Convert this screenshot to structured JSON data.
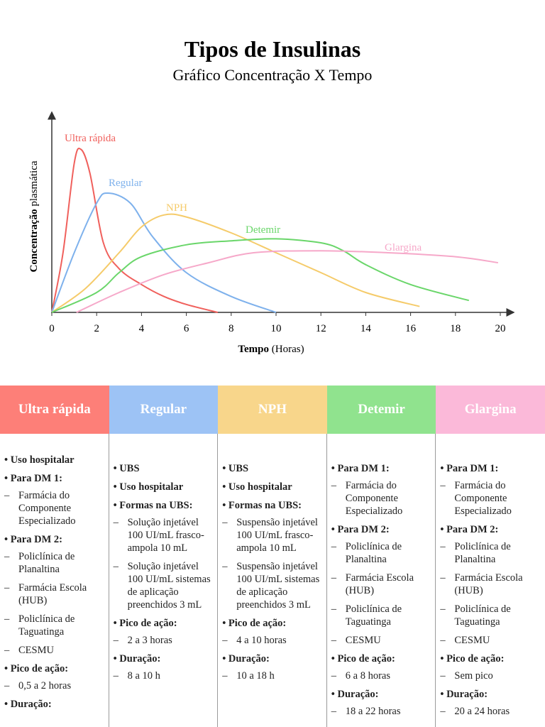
{
  "chart_data": {
    "type": "line",
    "title": "Tipos de Insulinas",
    "subtitle": "Gráfico Concentração X Tempo",
    "ylabel": [
      "Concentração",
      "plasmática"
    ],
    "xlabel": [
      "Tempo",
      "(Horas)"
    ],
    "xlim": [
      0,
      20
    ],
    "ylim": [
      0,
      100
    ],
    "xticks": [
      0,
      2,
      4,
      6,
      8,
      10,
      12,
      14,
      16,
      18,
      20
    ],
    "series": [
      {
        "name": "Ultra rápida",
        "color": "#f0605c",
        "x": [
          0,
          0.5,
          1,
          1.3,
          1.7,
          2.3,
          3,
          4,
          5,
          6,
          7.4
        ],
        "values": [
          0,
          30,
          75,
          82,
          70,
          35,
          22,
          14,
          8,
          4,
          0
        ]
      },
      {
        "name": "Regular",
        "color": "#7eb1ec",
        "x": [
          0,
          1,
          2,
          2.5,
          3.5,
          4.5,
          6,
          8,
          10
        ],
        "values": [
          0,
          30,
          55,
          60,
          55,
          38,
          20,
          8,
          0
        ]
      },
      {
        "name": "NPH",
        "color": "#f5cb6a",
        "x": [
          0,
          1.5,
          3,
          4,
          5,
          6,
          8,
          10,
          12,
          14,
          16.4
        ],
        "values": [
          0,
          12,
          30,
          43,
          49,
          48,
          40,
          30,
          20,
          10,
          3
        ]
      },
      {
        "name": "Detemir",
        "color": "#6ad66a",
        "x": [
          0,
          2,
          3,
          4,
          6,
          8,
          10,
          12,
          13,
          14,
          16,
          18.6
        ],
        "values": [
          0,
          10,
          20,
          28,
          34,
          36,
          37,
          35,
          31,
          24,
          14,
          6
        ]
      },
      {
        "name": "Glargina",
        "color": "#f6a8c9",
        "x": [
          1.1,
          3,
          5,
          7,
          9,
          12,
          15,
          18,
          19.9
        ],
        "values": [
          0,
          10,
          19,
          25,
          30,
          31,
          30,
          28,
          25
        ]
      }
    ]
  },
  "table": {
    "columns": [
      {
        "header": "Ultra rápida",
        "color": "#fd7f78",
        "groups": [
          {
            "label": "Uso hospitalar",
            "items": []
          },
          {
            "label": "Para DM 1:",
            "items": [
              "Farmácia do Componente Especializado"
            ]
          },
          {
            "label": "Para DM 2:",
            "items": [
              "Policlínica de Planaltina",
              "Farmácia Escola (HUB)",
              "Policlínica de Taguatinga",
              "CESMU"
            ]
          },
          {
            "label": "Pico de ação:",
            "items": [
              "0,5 a 2 horas"
            ]
          },
          {
            "label": "Duração:",
            "items": []
          }
        ]
      },
      {
        "header": "Regular",
        "color": "#9dc3f5",
        "groups": [
          {
            "label": "UBS",
            "items": []
          },
          {
            "label": "Uso hospitalar",
            "items": []
          },
          {
            "label": "Formas na UBS:",
            "items": [
              "Solução injetável 100 UI/mL frasco-ampola 10 mL",
              "Solução injetável 100 UI/mL sistemas de aplicação preenchidos 3 mL"
            ]
          },
          {
            "label": "Pico de ação:",
            "items": [
              "2 a 3 horas"
            ]
          },
          {
            "label": "Duração:",
            "items": [
              "8 a 10 h"
            ]
          }
        ]
      },
      {
        "header": "NPH",
        "color": "#f8d68b",
        "groups": [
          {
            "label": "UBS",
            "items": []
          },
          {
            "label": "Uso hospitalar",
            "items": []
          },
          {
            "label": "Formas na UBS:",
            "items": [
              "Suspensão injetável 100 UI/mL frasco-ampola 10 mL",
              "Suspensão injetável 100 UI/mL sistemas de aplicação preenchidos 3 mL"
            ]
          },
          {
            "label": "Pico de ação:",
            "items": [
              "4 a 10 horas"
            ]
          },
          {
            "label": "Duração:",
            "items": [
              "10 a 18 h"
            ]
          }
        ]
      },
      {
        "header": "Detemir",
        "color": "#90e38e",
        "groups": [
          {
            "label": "Para DM 1:",
            "items": [
              "Farmácia do Componente Especializado"
            ]
          },
          {
            "label": "Para DM 2:",
            "items": [
              "Policlínica de Planaltina",
              "Farmácia Escola (HUB)",
              "Policlínica de Taguatinga",
              "CESMU"
            ]
          },
          {
            "label": "Pico de ação:",
            "items": [
              "6 a 8 horas"
            ]
          },
          {
            "label": "Duração:",
            "items": [
              "18 a 22 horas"
            ]
          }
        ]
      },
      {
        "header": "Glargina",
        "color": "#fbb9d9",
        "groups": [
          {
            "label": "Para DM 1:",
            "items": [
              "Farmácia do Componente Especializado"
            ]
          },
          {
            "label": "Para DM 2:",
            "items": [
              "Policlínica de Planaltina",
              "Farmácia Escola (HUB)",
              "Policlínica de Taguatinga",
              "CESMU"
            ]
          },
          {
            "label": "Pico de ação:",
            "items": [
              "Sem pico"
            ]
          },
          {
            "label": "Duração:",
            "items": [
              "20 a 24 horas"
            ]
          }
        ]
      }
    ]
  }
}
